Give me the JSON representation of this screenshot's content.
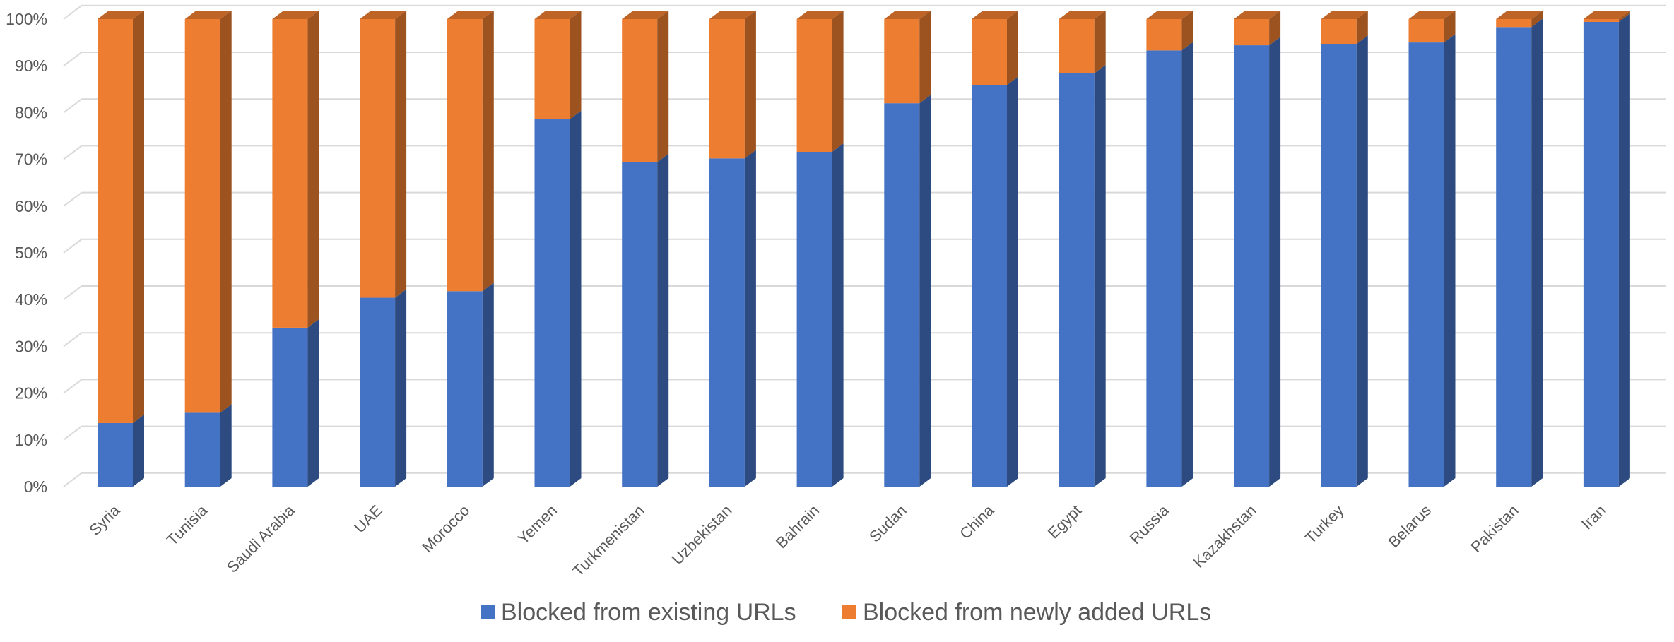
{
  "chart_data": {
    "type": "bar",
    "stacked": "percent",
    "three_d": true,
    "title": "",
    "xlabel": "",
    "ylabel": "",
    "ylim": [
      0,
      100
    ],
    "y_ticks": [
      "0%",
      "10%",
      "20%",
      "30%",
      "40%",
      "50%",
      "60%",
      "70%",
      "80%",
      "90%",
      "100%"
    ],
    "grid": true,
    "legend_position": "bottom",
    "categories": [
      "Syria",
      "Tunisia",
      "Saudi Arabia",
      "UAE",
      "Morocco",
      "Yemen",
      "Turkmenistan",
      "Uzbekistan",
      "Bahrain",
      "Sudan",
      "China",
      "Egypt",
      "Russia",
      "Kazakhstan",
      "Turkey",
      "Belarus",
      "Pakistan",
      "Iran"
    ],
    "series": [
      {
        "name": "Blocked from existing URLs",
        "color": "#4472C4",
        "values": [
          13.6,
          15.8,
          34.0,
          40.4,
          41.8,
          78.6,
          69.4,
          70.2,
          71.6,
          82.0,
          85.9,
          88.4,
          93.3,
          94.4,
          94.7,
          95.0,
          98.3,
          99.4
        ]
      },
      {
        "name": "Blocked from newly added URLs",
        "color": "#ED7D31",
        "values": [
          86.4,
          84.2,
          66.0,
          59.6,
          58.2,
          21.4,
          30.6,
          29.8,
          28.4,
          18.0,
          14.1,
          11.6,
          6.7,
          5.6,
          5.3,
          5.0,
          1.7,
          0.6
        ]
      }
    ]
  }
}
